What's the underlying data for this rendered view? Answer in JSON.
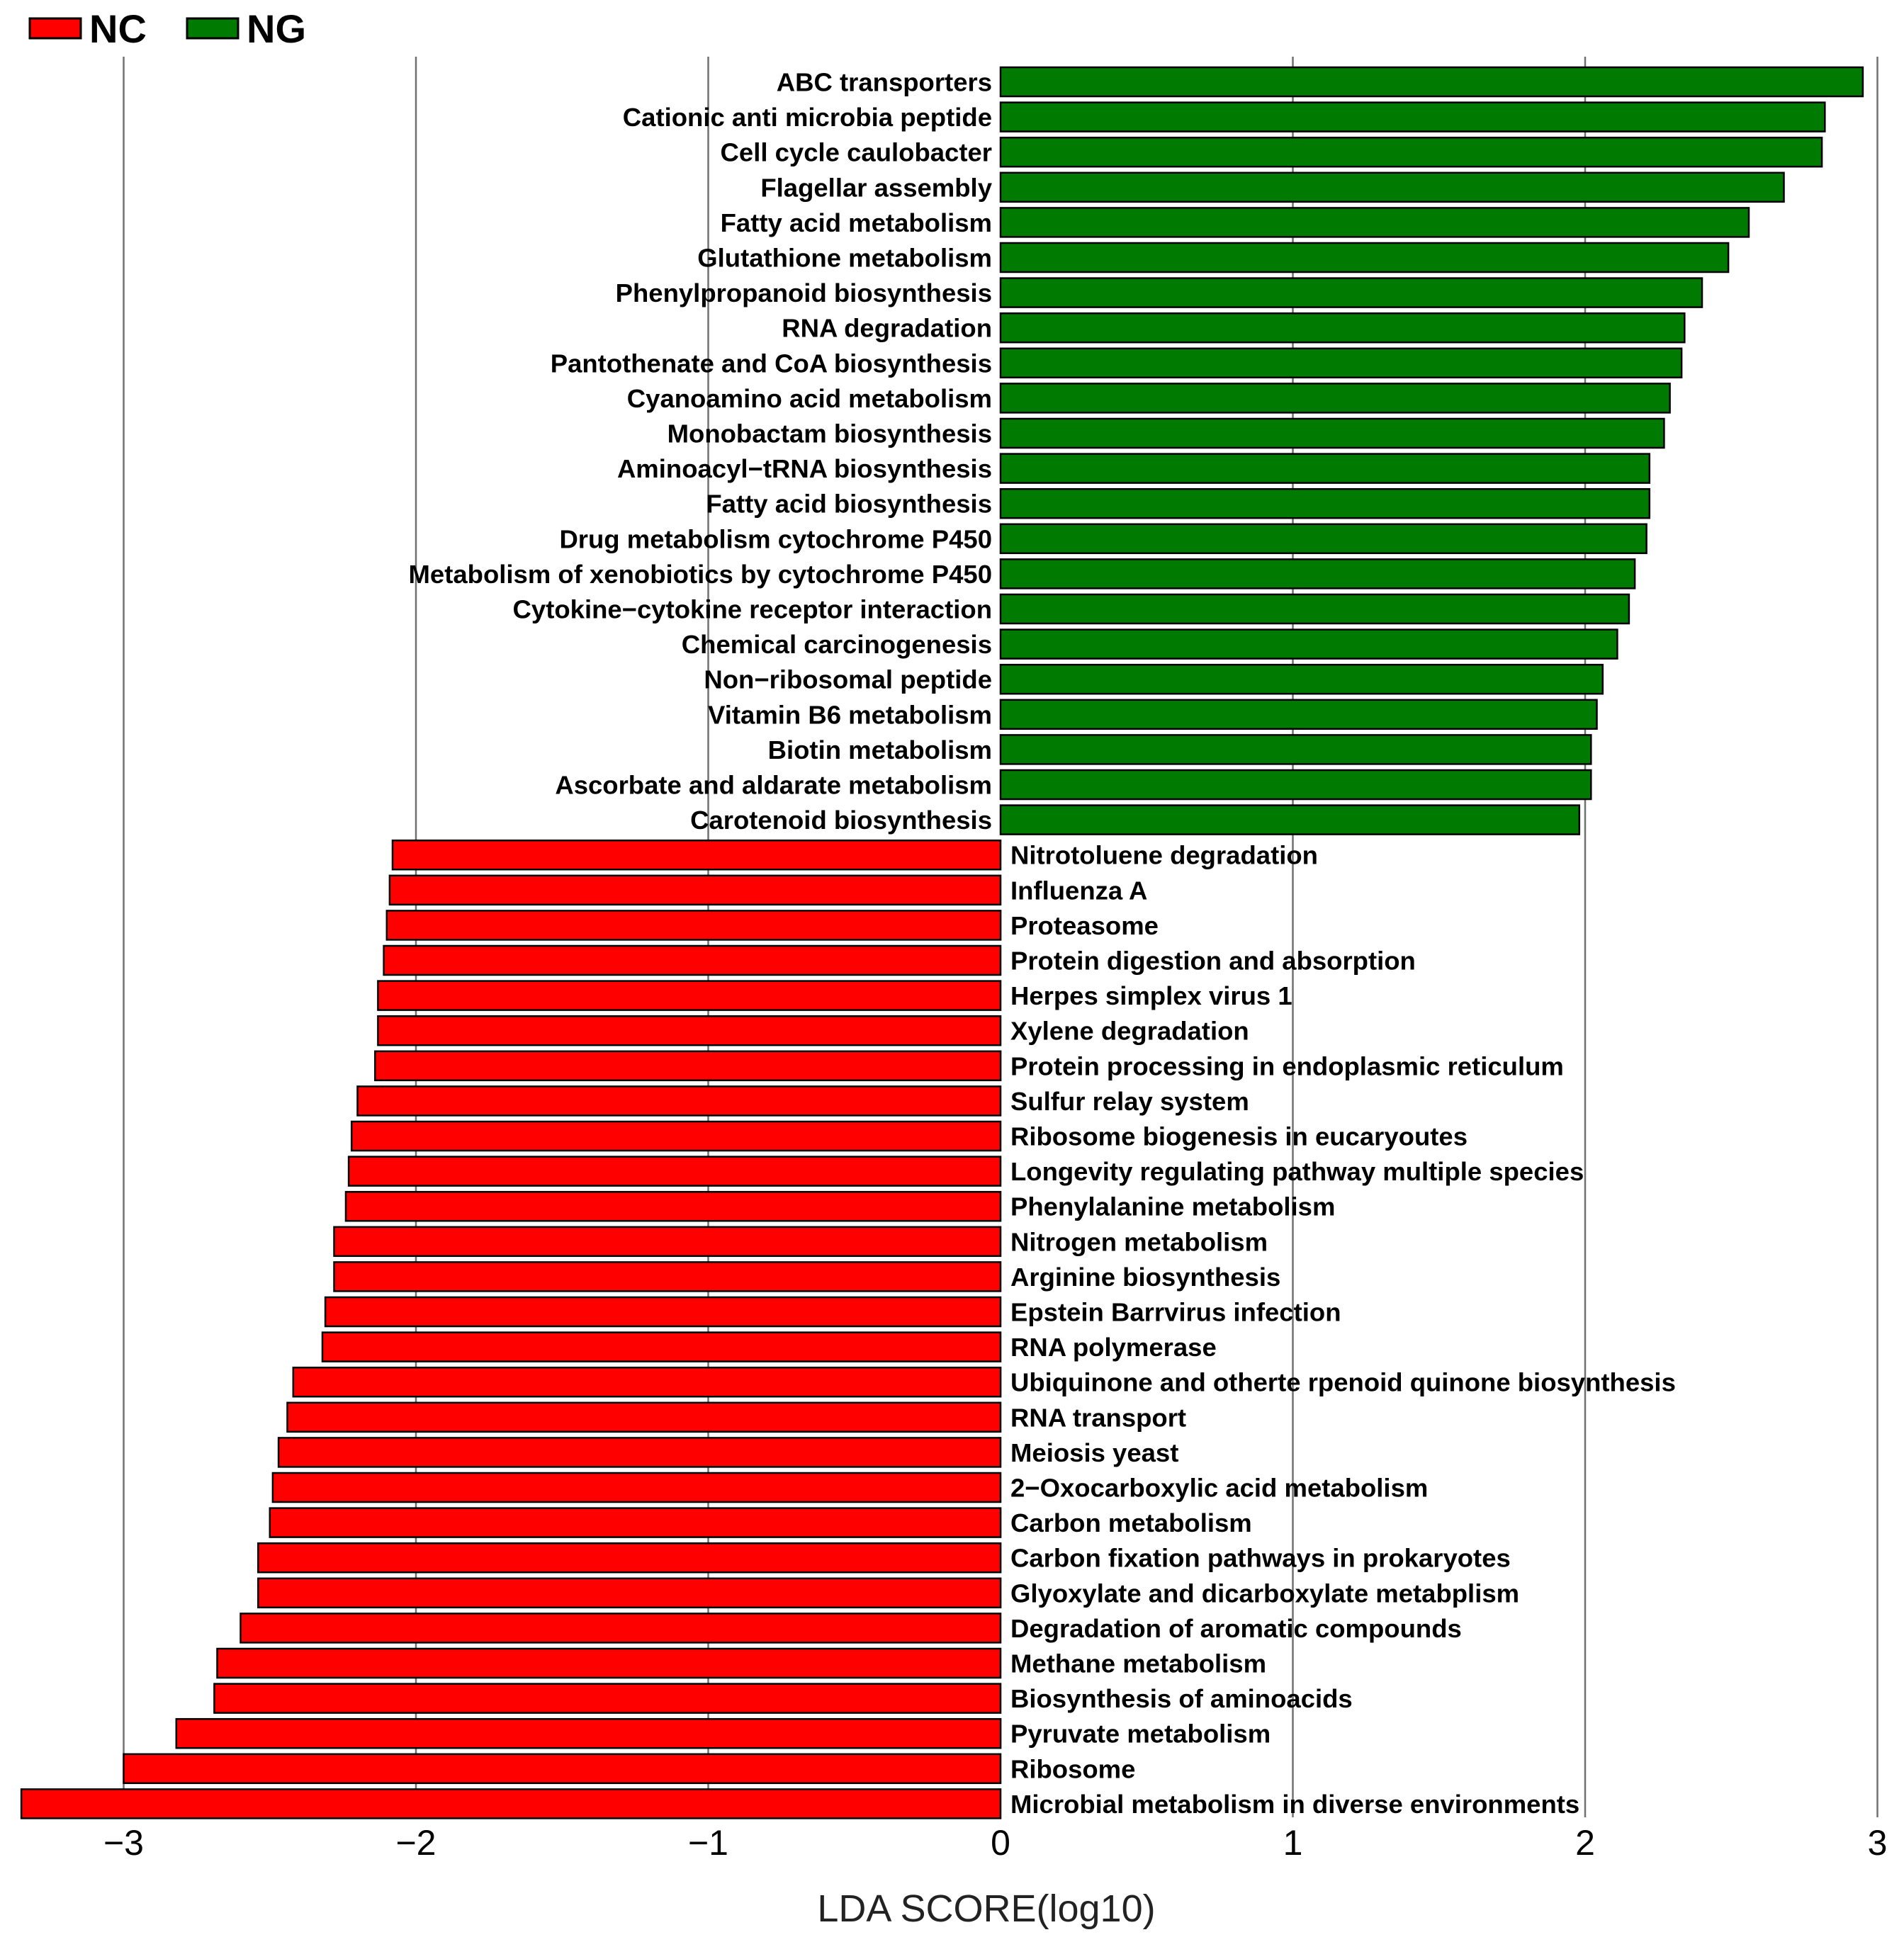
{
  "chart_data": {
    "type": "bar",
    "orientation": "horizontal",
    "title": "",
    "xlabel": "LDA SCORE(log10)",
    "ylabel": "",
    "xlim": [
      -3.35,
      3.0
    ],
    "xticks": [
      -3,
      -2,
      -1,
      0,
      1,
      2,
      3
    ],
    "xtick_labels": [
      "−3",
      "−2",
      "−1",
      "0",
      "1",
      "2",
      "3"
    ],
    "grid": true,
    "legend_position": "top-left",
    "legend": [
      {
        "label": "NC",
        "color": "#ff0000"
      },
      {
        "label": "NG",
        "color": "#007a00"
      }
    ],
    "series": [
      {
        "name": "NG",
        "color": "#007a00",
        "categories": [
          "ABC transporters",
          "Cationic anti microbia peptide",
          "Cell cycle caulobacter",
          "Flagellar assembly",
          "Fatty acid metabolism",
          "Glutathione metabolism",
          "Phenylpropanoid biosynthesis",
          "RNA degradation",
          "Pantothenate and CoA biosynthesis",
          "Cyanoamino acid metabolism",
          "Monobactam biosynthesis",
          "Aminoacyl−tRNA biosynthesis",
          "Fatty acid biosynthesis",
          "Drug metabolism cytochrome P450",
          "Metabolism of xenobiotics by cytochrome P450",
          "Cytokine−cytokine receptor interaction",
          "Chemical carcinogenesis",
          "Non−ribosomal peptide",
          "Vitamin B6 metabolism",
          "Biotin metabolism",
          "Ascorbate and aldarate metabolism",
          "Carotenoid biosynthesis"
        ],
        "values": [
          2.95,
          2.82,
          2.81,
          2.68,
          2.56,
          2.49,
          2.4,
          2.34,
          2.33,
          2.29,
          2.27,
          2.22,
          2.22,
          2.21,
          2.17,
          2.15,
          2.11,
          2.06,
          2.04,
          2.02,
          2.02,
          1.98
        ]
      },
      {
        "name": "NC",
        "color": "#ff0000",
        "categories": [
          "Nitrotoluene degradation",
          "Influenza A",
          "Proteasome",
          "Protein digestion and absorption",
          "Herpes simplex virus 1",
          "Xylene degradation",
          "Protein processing in endoplasmic reticulum",
          "Sulfur relay system",
          "Ribosome biogenesis in eucaryoutes",
          "Longevity regulating pathway multiple species",
          "Phenylalanine metabolism",
          "Nitrogen metabolism",
          "Arginine biosynthesis",
          "Epstein Barrvirus infection",
          "RNA polymerase",
          "Ubiquinone and otherte rpenoid quinone biosynthesis",
          "RNA transport",
          "Meiosis yeast",
          "2−Oxocarboxylic acid metabolism",
          "Carbon metabolism",
          "Carbon fixation pathways in prokaryotes",
          "Glyoxylate and dicarboxylate metabplism",
          "Degradation of aromatic compounds",
          "Methane metabolism",
          "Biosynthesis of aminoacids",
          "Pyruvate metabolism",
          "Ribosome",
          "Microbial metabolism in diverse environments"
        ],
        "values": [
          -2.08,
          -2.09,
          -2.1,
          -2.11,
          -2.13,
          -2.13,
          -2.14,
          -2.2,
          -2.22,
          -2.23,
          -2.24,
          -2.28,
          -2.28,
          -2.31,
          -2.32,
          -2.42,
          -2.44,
          -2.47,
          -2.49,
          -2.5,
          -2.54,
          -2.54,
          -2.6,
          -2.68,
          -2.69,
          -2.82,
          -3.0,
          -3.35
        ]
      }
    ]
  }
}
